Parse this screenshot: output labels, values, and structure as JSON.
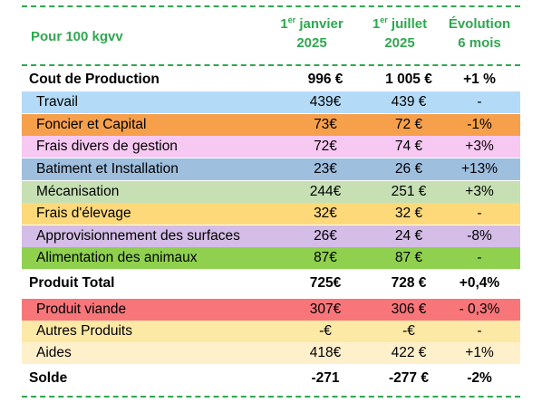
{
  "header": {
    "label": "Pour 100 kgvv",
    "col1": {
      "sup": "er",
      "pre": "1",
      "line1": " janvier",
      "line2": "2025"
    },
    "col2": {
      "sup": "er",
      "pre": "1",
      "line1": " juillet",
      "line2": "2025"
    },
    "col3": {
      "line1": "Évolution",
      "line2": "6 mois"
    }
  },
  "rows": [
    {
      "label": "Cout de Production",
      "v1": "996 €",
      "v2": "1 005 €",
      "evo": "+1 %",
      "bold": true,
      "color": "#ffffff"
    },
    {
      "label": "Travail",
      "v1": "439€",
      "v2": "439 €",
      "evo": "-",
      "color": "#b3dbf7"
    },
    {
      "label": "Foncier et Capital",
      "v1": "73€",
      "v2": "72 €",
      "evo": "-1%",
      "color": "#f7a04b"
    },
    {
      "label": "Frais divers de gestion",
      "v1": "72€",
      "v2": "74 €",
      "evo": "+3%",
      "color": "#f7c8f2"
    },
    {
      "label": "Batiment et Installation",
      "v1": "23€",
      "v2": "26 €",
      "evo": "+13%",
      "color": "#9fbfdf"
    },
    {
      "label": "Mécanisation",
      "v1": "244€",
      "v2": "251 €",
      "evo": "+3%",
      "color": "#c6e0b4"
    },
    {
      "label": "Frais d'élevage",
      "v1": "32€",
      "v2": "32 €",
      "evo": "-",
      "color": "#fed97a"
    },
    {
      "label": "Approvisionnement des surfaces",
      "v1": "26€",
      "v2": "24 €",
      "evo": "-8%",
      "color": "#d4bde6"
    },
    {
      "label": "Alimentation des animaux",
      "v1": "87€",
      "v2": "87 €",
      "evo": "-",
      "color": "#8fd14f"
    },
    {
      "label": "Produit Total",
      "v1": "725€",
      "v2": "728 €",
      "evo": "+0,4%",
      "bold": true,
      "color": "#ffffff"
    },
    {
      "label": "Produit viande",
      "v1": "307€",
      "v2": "306 €",
      "evo": "- 0,3%",
      "color": "#f8767a"
    },
    {
      "label": "Autres Produits",
      "v1": "-€",
      "v2": "-€",
      "evo": "-",
      "color": "#fde9a6"
    },
    {
      "label": "Aides",
      "v1": "418€",
      "v2": "422 €",
      "evo": "+1%",
      "color": "#fff0cc"
    },
    {
      "label": "Solde",
      "v1": "-271",
      "v2": "-277 €",
      "evo": "-2%",
      "bold": true,
      "color": "#ffffff"
    }
  ]
}
